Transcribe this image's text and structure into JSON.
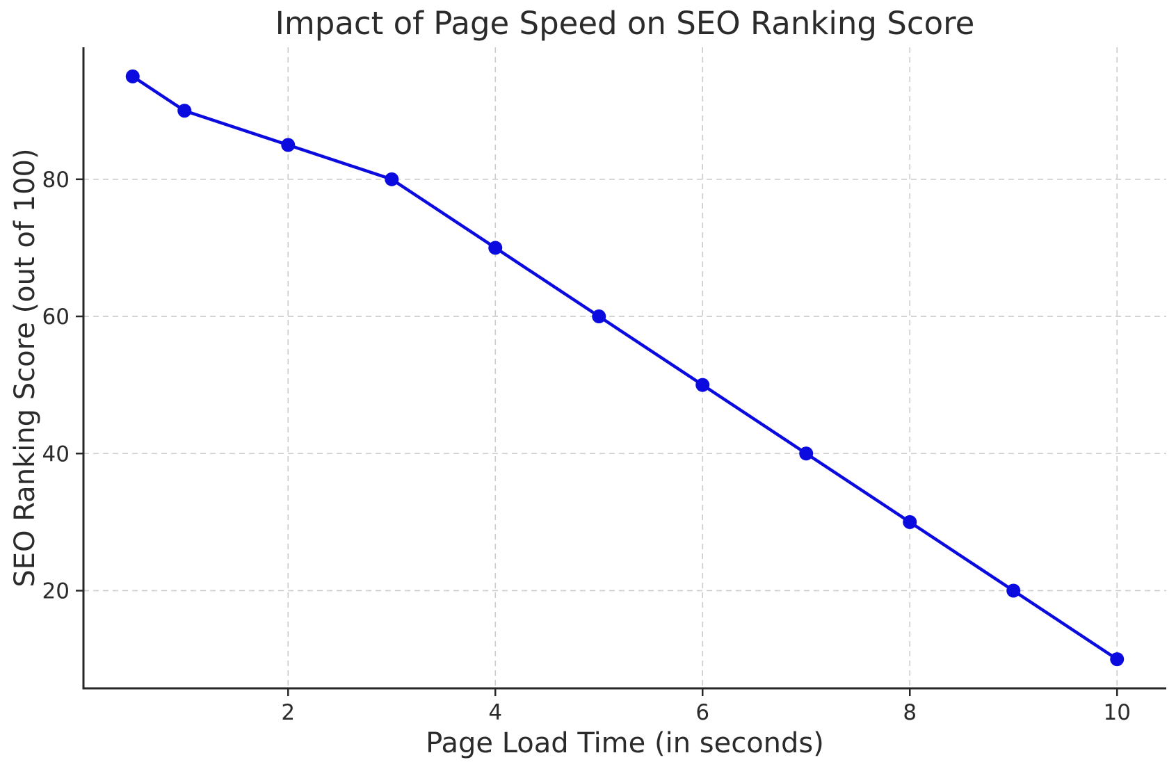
{
  "chart_data": {
    "type": "line",
    "title": "Impact of Page Speed on SEO Ranking Score",
    "xlabel": "Page Load Time (in seconds)",
    "ylabel": "SEO Ranking Score (out of 100)",
    "x": [
      0.5,
      1,
      2,
      3,
      4,
      5,
      6,
      7,
      8,
      9,
      10
    ],
    "y": [
      95,
      90,
      85,
      80,
      70,
      60,
      50,
      40,
      30,
      20,
      10
    ],
    "xticks": [
      2,
      4,
      6,
      8,
      10
    ],
    "yticks": [
      20,
      40,
      60,
      80
    ],
    "xlim": [
      0.025,
      10.475
    ],
    "ylim": [
      5.75,
      99.25
    ],
    "grid": true,
    "grid_style": "dashed",
    "legend": false,
    "marker": "circle",
    "colors": {
      "line": "#0b0be0",
      "marker": "#0b0be0",
      "grid": "#cccccc",
      "axis": "#262626",
      "text": "#2b2b2b",
      "figure_background": "#ffffff"
    }
  }
}
